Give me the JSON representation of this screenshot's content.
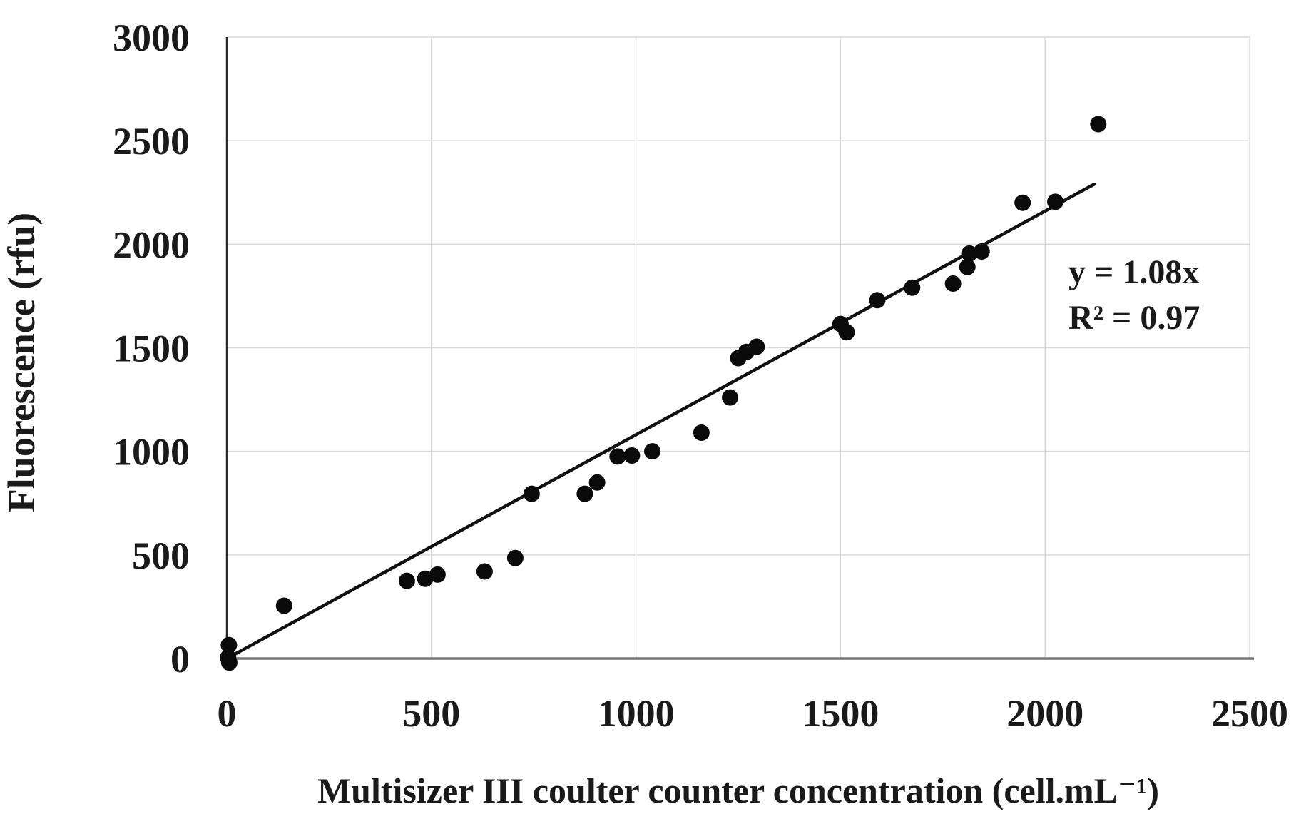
{
  "chart_data": {
    "type": "scatter",
    "title": "",
    "xlabel": "Multisizer III coulter counter concentration (cell.mL⁻¹)",
    "ylabel": "Fluorescence (rfu)",
    "xlim": [
      0,
      2500
    ],
    "ylim": [
      0,
      3000
    ],
    "x_ticks": [
      0,
      500,
      1000,
      1500,
      2000,
      2500
    ],
    "y_ticks": [
      0,
      500,
      1000,
      1500,
      2000,
      2500,
      3000
    ],
    "grid": true,
    "legend": "none",
    "marker_color": "#0a0a0a",
    "line_color": "#111111",
    "grid_color": "#d9d9d9",
    "x_axis_color": "#7a7a7a",
    "y_axis_color": "#2b2b2b",
    "points": [
      [
        5,
        65
      ],
      [
        3,
        5
      ],
      [
        6,
        -20
      ],
      [
        140,
        255
      ],
      [
        440,
        375
      ],
      [
        485,
        385
      ],
      [
        515,
        405
      ],
      [
        630,
        420
      ],
      [
        705,
        485
      ],
      [
        745,
        795
      ],
      [
        875,
        795
      ],
      [
        905,
        850
      ],
      [
        955,
        975
      ],
      [
        990,
        980
      ],
      [
        1040,
        1000
      ],
      [
        1160,
        1090
      ],
      [
        1230,
        1260
      ],
      [
        1250,
        1450
      ],
      [
        1270,
        1480
      ],
      [
        1295,
        1505
      ],
      [
        1500,
        1615
      ],
      [
        1515,
        1575
      ],
      [
        1590,
        1730
      ],
      [
        1675,
        1790
      ],
      [
        1775,
        1810
      ],
      [
        1810,
        1890
      ],
      [
        1815,
        1955
      ],
      [
        1845,
        1965
      ],
      [
        1945,
        2200
      ],
      [
        2025,
        2205
      ],
      [
        2130,
        2580
      ]
    ],
    "trendline": {
      "slope": 1.08,
      "intercept": 0,
      "equation": "y = 1.08x",
      "r_squared_label": "R² = 0.97",
      "r_squared": 0.97,
      "x_start": 15,
      "x_end": 2120
    }
  },
  "annotation": {
    "line1": "y = 1.08x",
    "line2": "R² = 0.97"
  }
}
